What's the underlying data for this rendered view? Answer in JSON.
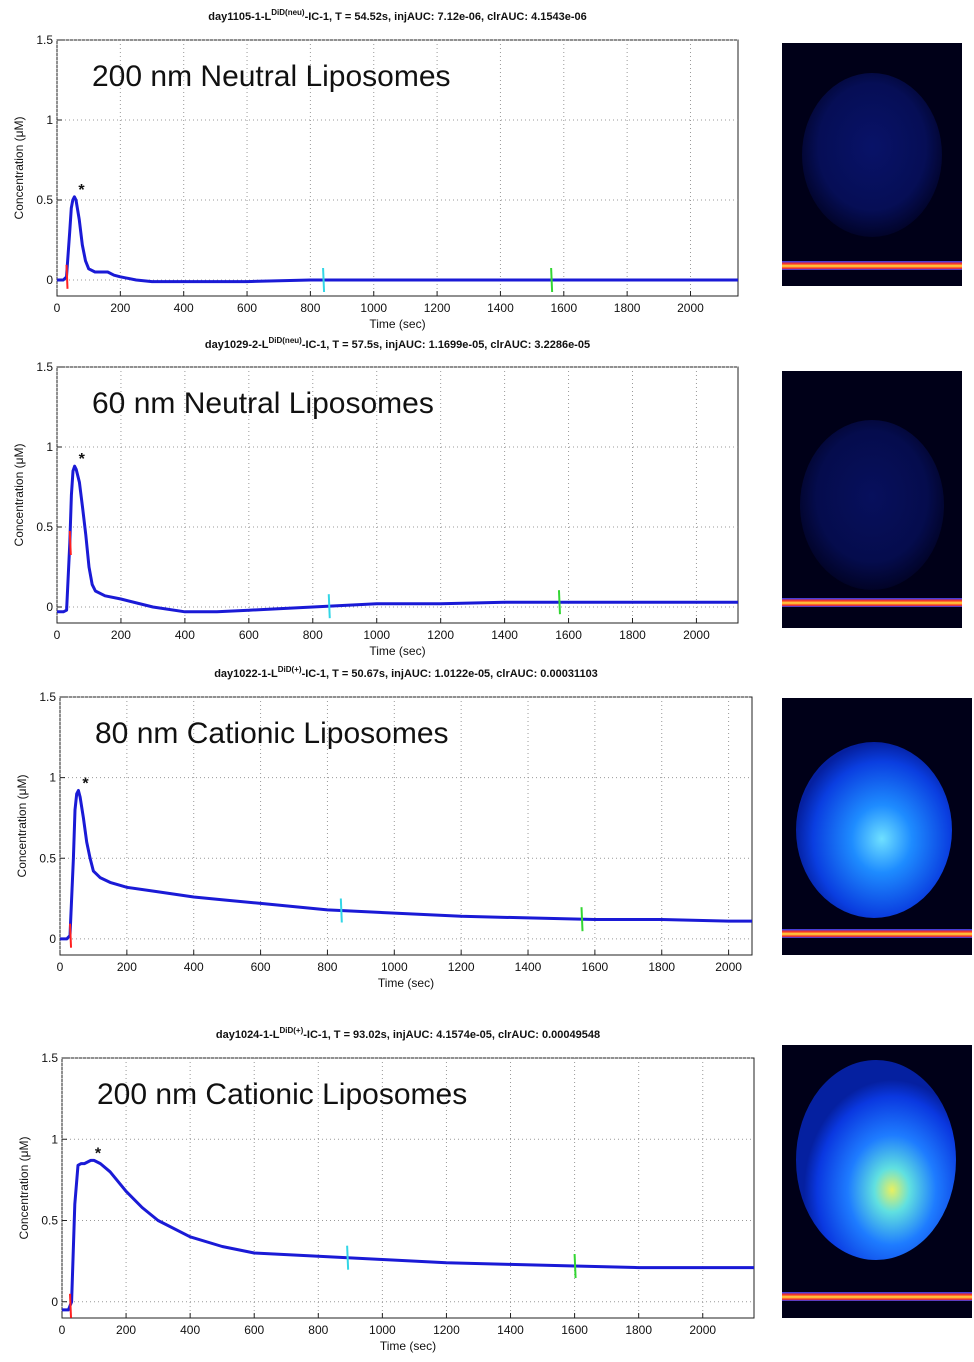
{
  "chart_data": [
    {
      "type": "line",
      "title": [
        "day1105-1-L",
        "DiD(neu)",
        "-IC-1, T = 54.52s, injAUC: 7.12e-06, clrAUC: 4.1543e-06"
      ],
      "annotation": "200 nm Neutral Liposomes",
      "peak_marker": "*",
      "xlabel": "Time (sec)",
      "ylabel": "Concentration (μM)",
      "x": [
        0,
        20,
        30,
        40,
        45,
        50,
        55,
        60,
        70,
        80,
        90,
        100,
        120,
        140,
        160,
        180,
        200,
        250,
        300,
        400,
        500,
        600,
        800,
        1000,
        1200,
        1400,
        1600,
        1800,
        2000,
        2150
      ],
      "values": [
        0,
        0,
        0.02,
        0.3,
        0.45,
        0.5,
        0.52,
        0.5,
        0.38,
        0.22,
        0.12,
        0.07,
        0.05,
        0.05,
        0.05,
        0.03,
        0.02,
        0.0,
        -0.01,
        -0.01,
        -0.01,
        -0.01,
        0,
        0,
        0,
        0,
        0,
        0,
        0,
        0
      ],
      "color": "#1a1ad6",
      "event_markers": [
        {
          "x": 30,
          "color": "#ff2020"
        },
        {
          "x": 840,
          "color": "#33d6e6"
        },
        {
          "x": 1560,
          "color": "#33d633"
        }
      ],
      "xlim": [
        0,
        2150
      ],
      "ylim": [
        -0.1,
        1.5
      ],
      "xticks": [
        0,
        200,
        400,
        600,
        800,
        1000,
        1200,
        1400,
        1600,
        1800,
        2000
      ],
      "yticks": [
        0,
        0.5,
        1,
        1.5
      ],
      "grid": true
    },
    {
      "type": "line",
      "title": [
        "day1029-2-L",
        "DiD(neu)",
        "-IC-1, T = 57.5s, injAUC: 1.1699e-05, clrAUC: 3.2286e-05"
      ],
      "annotation": "60 nm Neutral Liposomes",
      "peak_marker": "*",
      "xlabel": "Time (sec)",
      "ylabel": "Concentration (μM)",
      "x": [
        0,
        20,
        30,
        40,
        45,
        50,
        55,
        60,
        70,
        80,
        90,
        100,
        110,
        120,
        150,
        200,
        300,
        400,
        500,
        600,
        700,
        800,
        1000,
        1200,
        1400,
        1600,
        1800,
        2000,
        2130
      ],
      "values": [
        -0.03,
        -0.03,
        -0.02,
        0.4,
        0.7,
        0.85,
        0.88,
        0.86,
        0.78,
        0.62,
        0.45,
        0.25,
        0.14,
        0.1,
        0.07,
        0.05,
        0,
        -0.03,
        -0.03,
        -0.02,
        -0.01,
        0,
        0.02,
        0.02,
        0.03,
        0.03,
        0.03,
        0.03,
        0.03
      ],
      "color": "#1a1ad6",
      "event_markers": [
        {
          "x": 40,
          "color": "#ff2020"
        },
        {
          "x": 850,
          "color": "#33d6e6"
        },
        {
          "x": 1570,
          "color": "#33d633"
        }
      ],
      "xlim": [
        0,
        2130
      ],
      "ylim": [
        -0.1,
        1.5
      ],
      "xticks": [
        0,
        200,
        400,
        600,
        800,
        1000,
        1200,
        1400,
        1600,
        1800,
        2000
      ],
      "yticks": [
        0,
        0.5,
        1,
        1.5
      ],
      "grid": true
    },
    {
      "type": "line",
      "title": [
        "day1022-1-L",
        "DiD(+)",
        "-IC-1, T = 50.67s, injAUC: 1.0122e-05, clrAUC: 0.00031103"
      ],
      "annotation": "80 nm Cationic Liposomes",
      "peak_marker": "*",
      "xlabel": "Time (sec)",
      "ylabel": "Concentration (μM)",
      "x": [
        0,
        20,
        30,
        40,
        45,
        50,
        55,
        60,
        70,
        80,
        90,
        100,
        120,
        150,
        200,
        300,
        400,
        500,
        600,
        800,
        1000,
        1200,
        1400,
        1600,
        1800,
        2000,
        2070
      ],
      "values": [
        0,
        0,
        0.02,
        0.5,
        0.8,
        0.9,
        0.92,
        0.88,
        0.75,
        0.6,
        0.5,
        0.42,
        0.38,
        0.35,
        0.32,
        0.29,
        0.26,
        0.24,
        0.22,
        0.18,
        0.16,
        0.14,
        0.13,
        0.12,
        0.12,
        0.11,
        0.11
      ],
      "color": "#1a1ad6",
      "event_markers": [
        {
          "x": 30,
          "color": "#ff2020"
        },
        {
          "x": 840,
          "color": "#33d6e6"
        },
        {
          "x": 1560,
          "color": "#33d633"
        }
      ],
      "xlim": [
        0,
        2070
      ],
      "ylim": [
        -0.1,
        1.5
      ],
      "xticks": [
        0,
        200,
        400,
        600,
        800,
        1000,
        1200,
        1400,
        1600,
        1800,
        2000
      ],
      "yticks": [
        0,
        0.5,
        1,
        1.5
      ],
      "grid": true
    },
    {
      "type": "line",
      "title": [
        "day1024-1-L",
        "DiD(+)",
        "-IC-1, T = 93.02s, injAUC: 4.1574e-05, clrAUC: 0.00049548"
      ],
      "annotation": "200 nm Cationic Liposomes",
      "peak_marker": "*",
      "xlabel": "Time (sec)",
      "ylabel": "Concentration (μM)",
      "x": [
        0,
        20,
        30,
        40,
        50,
        60,
        70,
        80,
        90,
        100,
        120,
        150,
        200,
        250,
        300,
        400,
        500,
        600,
        700,
        800,
        1000,
        1200,
        1400,
        1600,
        1800,
        2000,
        2160
      ],
      "values": [
        -0.05,
        -0.05,
        0.0,
        0.6,
        0.84,
        0.85,
        0.85,
        0.86,
        0.87,
        0.87,
        0.85,
        0.8,
        0.68,
        0.58,
        0.5,
        0.4,
        0.34,
        0.3,
        0.29,
        0.28,
        0.26,
        0.24,
        0.23,
        0.22,
        0.21,
        0.21,
        0.21
      ],
      "color": "#1a1ad6",
      "event_markers": [
        {
          "x": 25,
          "color": "#ff2020"
        },
        {
          "x": 890,
          "color": "#33d6e6"
        },
        {
          "x": 1600,
          "color": "#33d633"
        }
      ],
      "xlim": [
        0,
        2160
      ],
      "ylim": [
        -0.1,
        1.5
      ],
      "xticks": [
        0,
        200,
        400,
        600,
        800,
        1000,
        1200,
        1400,
        1600,
        1800,
        2000
      ],
      "yticks": [
        0,
        0.5,
        1,
        1.5
      ],
      "grid": true
    }
  ]
}
